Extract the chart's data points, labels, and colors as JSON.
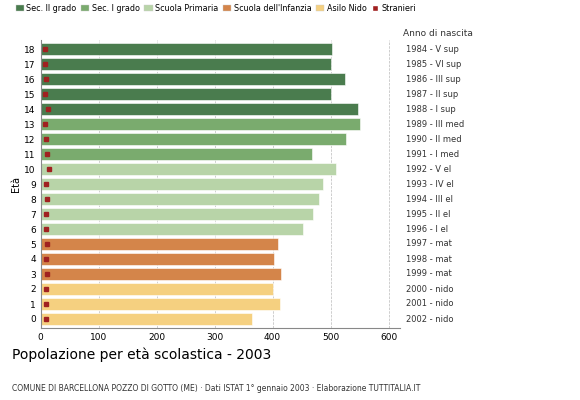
{
  "ages": [
    18,
    17,
    16,
    15,
    14,
    13,
    12,
    11,
    10,
    9,
    8,
    7,
    6,
    5,
    4,
    3,
    2,
    1,
    0
  ],
  "bar_values": [
    502,
    500,
    525,
    500,
    548,
    550,
    527,
    468,
    510,
    487,
    480,
    470,
    452,
    410,
    403,
    415,
    400,
    413,
    365
  ],
  "stranieri": [
    8,
    7,
    9,
    8,
    12,
    8,
    9,
    11,
    14,
    9,
    11,
    9,
    10,
    11,
    9,
    11,
    10,
    9,
    9
  ],
  "bar_colors": [
    "#4a7c4e",
    "#4a7c4e",
    "#4a7c4e",
    "#4a7c4e",
    "#4a7c4e",
    "#7aab6e",
    "#7aab6e",
    "#7aab6e",
    "#b8d4a8",
    "#b8d4a8",
    "#b8d4a8",
    "#b8d4a8",
    "#b8d4a8",
    "#d4854a",
    "#d4854a",
    "#d4854a",
    "#f5d080",
    "#f5d080",
    "#f5d080"
  ],
  "anno_labels": [
    "1984 - V sup",
    "1985 - VI sup",
    "1986 - III sup",
    "1987 - II sup",
    "1988 - I sup",
    "1989 - III med",
    "1990 - II med",
    "1991 - I med",
    "1992 - V el",
    "1993 - IV el",
    "1994 - III el",
    "1995 - II el",
    "1996 - I el",
    "1997 - mat",
    "1998 - mat",
    "1999 - mat",
    "2000 - nido",
    "2001 - nido",
    "2002 - nido"
  ],
  "legend_labels": [
    "Sec. II grado",
    "Sec. I grado",
    "Scuola Primaria",
    "Scuola dell'Infanzia",
    "Asilo Nido",
    "Stranieri"
  ],
  "legend_colors": [
    "#4a7c4e",
    "#7aab6e",
    "#b8d4a8",
    "#d4854a",
    "#f5d080",
    "#a02020"
  ],
  "xlabel_ticks": [
    0,
    100,
    200,
    300,
    400,
    500,
    600
  ],
  "xlim": [
    0,
    620
  ],
  "title": "Popolazione per età scolastica - 2003",
  "subtitle": "COMUNE DI BARCELLONA POZZO DI GOTTO (ME) · Dati ISTAT 1° gennaio 2003 · Elaborazione TUTTITALIA.IT",
  "eta_label": "Età",
  "anno_label": "Anno di nascita",
  "stranieri_color": "#a02020",
  "bar_height": 0.82,
  "background_color": "#ffffff",
  "grid_color": "#bbbbbb"
}
